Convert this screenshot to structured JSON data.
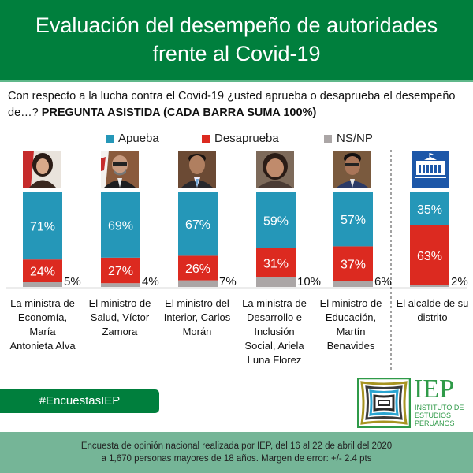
{
  "header": {
    "title_line1": "Evaluación del desempeño de autoridades",
    "title_line2": "frente al Covid-19"
  },
  "question": {
    "text": "Con respecto a la lucha contra el Covid-19 ¿usted aprueba o desaprueba el desempeño de…?",
    "bold_note": "PREGUNTA ASISTIDA (CADA BARRA SUMA 100%)"
  },
  "colors": {
    "brand_green": "#007F3D",
    "aprueba": "#2597B8",
    "desaprueba": "#DC2A20",
    "nsnp": "#ABA6A6",
    "footer_green": "#75B597"
  },
  "photos": [
    {
      "icon": "portrait-photo-icon",
      "alt": "María Antonieta Alva"
    },
    {
      "icon": "portrait-photo-icon",
      "alt": "Víctor Zamora"
    },
    {
      "icon": "portrait-photo-icon",
      "alt": "Carlos Morán"
    },
    {
      "icon": "portrait-photo-icon",
      "alt": "Ariela Luna Florez"
    },
    {
      "icon": "portrait-photo-icon",
      "alt": "Martín Benavides"
    },
    {
      "icon": "municipality-building-icon",
      "alt": "Municipalidad"
    }
  ],
  "chart_data": {
    "type": "bar",
    "stacked": true,
    "orientation": "vertical",
    "title": "Evaluación del desempeño de autoridades frente al Covid-19",
    "categories": [
      [
        "La ministra de",
        "Economía,",
        "María",
        "Antonieta Alva"
      ],
      [
        "El ministro de",
        "Salud, Víctor",
        "Zamora"
      ],
      [
        "El ministro del",
        "Interior, Carlos",
        "Morán"
      ],
      [
        "La ministra de",
        "Desarrollo e",
        "Inclusión",
        "Social, Ariela",
        "Luna Florez"
      ],
      [
        "El ministro de",
        "Educación,",
        "Martín",
        "Benavides"
      ],
      [
        "El alcalde de su",
        "distrito"
      ]
    ],
    "series": [
      {
        "name": "Apueba",
        "color": "#2597B8",
        "values": [
          71,
          69,
          67,
          59,
          57,
          35
        ],
        "labels": [
          "71%",
          "69%",
          "67%",
          "59%",
          "57%",
          "35%"
        ]
      },
      {
        "name": "Desaprueba",
        "color": "#DC2A20",
        "values": [
          24,
          27,
          26,
          31,
          37,
          63
        ],
        "labels": [
          "24%",
          "27%",
          "26%",
          "31%",
          "37%",
          "63%"
        ]
      },
      {
        "name": "NS/NP",
        "color": "#ABA6A6",
        "values": [
          5,
          4,
          7,
          10,
          6,
          2
        ],
        "labels": [
          "5%",
          "4%",
          "7%",
          "10%",
          "6%",
          "2%"
        ]
      }
    ],
    "ylim": [
      0,
      100
    ],
    "xlabel": "",
    "ylabel": "",
    "grid": false,
    "legend_position": "top-center",
    "divider_after_category": 5
  },
  "hashtag": "#EncuestasIEP",
  "logo": {
    "wordmark": "IEP",
    "line1": "INSTITUTO DE",
    "line2": "ESTUDIOS",
    "line3": "PERUANOS"
  },
  "footer": {
    "line1": "Encuesta de opinión nacional realizada por IEP, del 16 al 22 de abril del 2020",
    "line2": "a 1,670 personas mayores de 18 años. Margen de error: +/- 2.4 pts"
  }
}
